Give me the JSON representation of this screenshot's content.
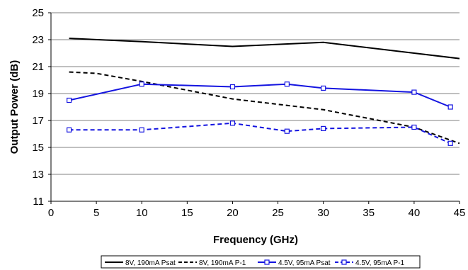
{
  "chart_data": {
    "type": "line",
    "title": "",
    "xlabel": "Frequency (GHz)",
    "ylabel": "Output Power (dB)",
    "xlim": [
      0,
      45
    ],
    "ylim": [
      11,
      25
    ],
    "x_ticks": [
      0,
      5,
      10,
      15,
      20,
      25,
      30,
      35,
      40,
      45
    ],
    "y_ticks": [
      11,
      13,
      15,
      17,
      19,
      21,
      23,
      25
    ],
    "grid": "horizontal",
    "legend_position": "bottom",
    "series": [
      {
        "name": "8V, 190mA Psat",
        "color": "#000000",
        "dashed": false,
        "marker": "none",
        "x": [
          2,
          10,
          20,
          30,
          40,
          45
        ],
        "y": [
          23.1,
          22.85,
          22.5,
          22.8,
          22.0,
          21.6
        ]
      },
      {
        "name": "8V, 190mA P-1",
        "color": "#000000",
        "dashed": true,
        "marker": "none",
        "x": [
          2,
          5,
          10,
          20,
          30,
          40,
          45
        ],
        "y": [
          20.6,
          20.5,
          19.9,
          18.6,
          17.8,
          16.5,
          15.3
        ]
      },
      {
        "name": "4.5V, 95mA Psat",
        "color": "#1414e0",
        "dashed": false,
        "marker": "square",
        "x": [
          2,
          10,
          20,
          26,
          30,
          40,
          44
        ],
        "y": [
          18.5,
          19.7,
          19.5,
          19.7,
          19.4,
          19.1,
          18.0
        ]
      },
      {
        "name": "4.5V, 95mA P-1",
        "color": "#1414e0",
        "dashed": true,
        "marker": "square",
        "x": [
          2,
          10,
          20,
          26,
          30,
          40,
          44
        ],
        "y": [
          16.3,
          16.3,
          16.8,
          16.2,
          16.4,
          16.5,
          15.3
        ]
      }
    ]
  }
}
